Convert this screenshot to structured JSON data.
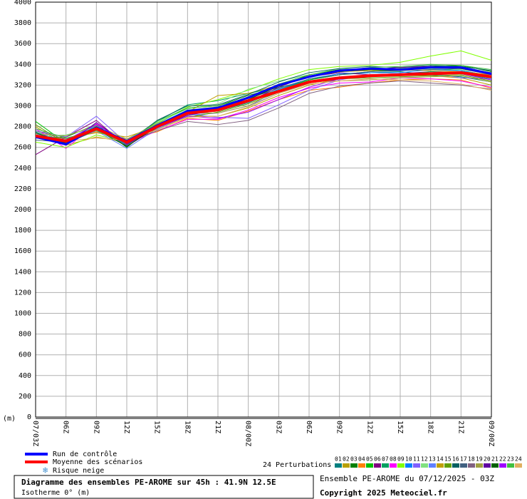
{
  "chart_data": {
    "type": "line",
    "title": "Diagramme des ensembles PE-AROME sur 45h : 41.9N 12.5E",
    "subtitle": "Isotherme 0° (m)",
    "ylabel": "(m)",
    "info": "Ensemble PE-AROME du 07/12/2025 - 03Z",
    "copyright": "Copyright 2025 Meteociel.fr",
    "perturbations_label": "24 Perturbations",
    "snow_legend": "Risque neige",
    "categories": [
      "07/03Z",
      "06Z",
      "09Z",
      "12Z",
      "15Z",
      "18Z",
      "21Z",
      "08/00Z",
      "03Z",
      "06Z",
      "09Z",
      "12Z",
      "15Z",
      "18Z",
      "21Z",
      "09/00Z"
    ],
    "ylim": [
      0,
      4000
    ],
    "yticks": [
      0,
      200,
      400,
      600,
      800,
      1000,
      1200,
      1400,
      1600,
      1800,
      2000,
      2200,
      2400,
      2600,
      2800,
      3000,
      3200,
      3400,
      3600,
      3800,
      4000
    ],
    "grid": true,
    "series": [
      {
        "name": "Run de contrôle",
        "color": "#0000ff",
        "values": [
          2700,
          2630,
          2790,
          2660,
          2810,
          2950,
          2980,
          3080,
          3200,
          3280,
          3340,
          3360,
          3350,
          3370,
          3370,
          3310
        ]
      },
      {
        "name": "Moyenne des scénarios",
        "color": "#ff0000",
        "values": [
          2710,
          2660,
          2780,
          2650,
          2800,
          2930,
          2960,
          3050,
          3140,
          3230,
          3270,
          3290,
          3300,
          3310,
          3320,
          3280
        ]
      },
      {
        "name": "01",
        "color": "#008080",
        "values": [
          2750,
          2650,
          2800,
          2640,
          2790,
          2920,
          2950,
          3030,
          3150,
          3250,
          3300,
          3320,
          3330,
          3300,
          3280,
          3230
        ]
      },
      {
        "name": "02",
        "color": "#b8a000",
        "values": [
          2800,
          2620,
          2700,
          2650,
          2780,
          2900,
          2900,
          2980,
          3100,
          3200,
          3260,
          3280,
          3300,
          3290,
          3270,
          3200
        ]
      },
      {
        "name": "03",
        "color": "#008000",
        "values": [
          2690,
          2700,
          2820,
          2600,
          2830,
          2980,
          3000,
          3100,
          3180,
          3300,
          3350,
          3340,
          3360,
          3380,
          3390,
          3330
        ]
      },
      {
        "name": "04",
        "color": "#ff8000",
        "values": [
          2720,
          2680,
          2750,
          2680,
          2750,
          2880,
          2860,
          2950,
          3060,
          3150,
          3180,
          3220,
          3250,
          3260,
          3250,
          3170
        ]
      },
      {
        "name": "05",
        "color": "#00c000",
        "values": [
          2850,
          2640,
          2830,
          2620,
          2820,
          2950,
          2980,
          3050,
          3160,
          3250,
          3300,
          3330,
          3350,
          3360,
          3340,
          3290
        ]
      },
      {
        "name": "06",
        "color": "#800080",
        "values": [
          2530,
          2700,
          2860,
          2610,
          2790,
          2940,
          2990,
          3060,
          3200,
          3280,
          3320,
          3300,
          3310,
          3330,
          3320,
          3270
        ]
      },
      {
        "name": "07",
        "color": "#00a060",
        "values": [
          2700,
          2650,
          2780,
          2660,
          2850,
          3010,
          3050,
          3120,
          3180,
          3230,
          3270,
          3300,
          3300,
          3330,
          3310,
          3260
        ]
      },
      {
        "name": "08",
        "color": "#ff00ff",
        "values": [
          2780,
          2590,
          2830,
          2630,
          2760,
          2870,
          2870,
          2960,
          3080,
          3170,
          3220,
          3230,
          3270,
          3260,
          3240,
          3180
        ]
      },
      {
        "name": "09",
        "color": "#80ff00",
        "values": [
          2650,
          2600,
          2720,
          2650,
          2830,
          2990,
          3060,
          3150,
          3260,
          3350,
          3380,
          3390,
          3420,
          3480,
          3530,
          3440
        ]
      },
      {
        "name": "10",
        "color": "#0080ff",
        "values": [
          2730,
          2670,
          2810,
          2620,
          2820,
          2960,
          2970,
          3040,
          3160,
          3260,
          3310,
          3320,
          3320,
          3350,
          3340,
          3290
        ]
      },
      {
        "name": "11",
        "color": "#8060ff",
        "values": [
          2760,
          2700,
          2900,
          2640,
          2800,
          2920,
          2890,
          2880,
          3010,
          3150,
          3250,
          3300,
          3290,
          3310,
          3270,
          3260
        ]
      },
      {
        "name": "12",
        "color": "#80e080",
        "values": [
          2700,
          2720,
          2790,
          2670,
          2840,
          2970,
          3020,
          3160,
          3240,
          3300,
          3360,
          3350,
          3370,
          3360,
          3350,
          3310
        ]
      },
      {
        "name": "13",
        "color": "#6080ff",
        "values": [
          2740,
          2640,
          2760,
          2590,
          2780,
          2910,
          2930,
          3000,
          3120,
          3220,
          3270,
          3290,
          3310,
          3320,
          3330,
          3280
        ]
      },
      {
        "name": "14",
        "color": "#c0a000",
        "values": [
          2690,
          2690,
          2740,
          2700,
          2800,
          2940,
          3100,
          3120,
          3200,
          3280,
          3330,
          3340,
          3350,
          3340,
          3330,
          3300
        ]
      },
      {
        "name": "15",
        "color": "#60a000",
        "values": [
          2820,
          2630,
          2770,
          2660,
          2770,
          2890,
          2940,
          3020,
          3130,
          3220,
          3260,
          3270,
          3280,
          3290,
          3300,
          3240
        ]
      },
      {
        "name": "16",
        "color": "#006060",
        "values": [
          2710,
          2660,
          2800,
          2640,
          2860,
          3000,
          3010,
          3110,
          3230,
          3320,
          3360,
          3380,
          3370,
          3390,
          3380,
          3340
        ]
      },
      {
        "name": "17",
        "color": "#406080",
        "values": [
          2670,
          2650,
          2780,
          2620,
          2810,
          2960,
          2990,
          3070,
          3170,
          3260,
          3300,
          3330,
          3340,
          3350,
          3360,
          3320
        ]
      },
      {
        "name": "18",
        "color": "#806080",
        "values": [
          2760,
          2680,
          2790,
          2650,
          2760,
          2850,
          2820,
          2860,
          2980,
          3120,
          3190,
          3220,
          3240,
          3220,
          3200,
          3160
        ]
      },
      {
        "name": "19",
        "color": "#a0a040",
        "values": [
          2730,
          2710,
          2810,
          2680,
          2830,
          2930,
          2930,
          3000,
          3150,
          3240,
          3240,
          3250,
          3270,
          3280,
          3290,
          3230
        ]
      },
      {
        "name": "20",
        "color": "#6000a0",
        "values": [
          2700,
          2620,
          2840,
          2630,
          2790,
          2910,
          2960,
          3040,
          3180,
          3290,
          3330,
          3350,
          3370,
          3380,
          3360,
          3300
        ]
      },
      {
        "name": "21",
        "color": "#006000",
        "values": [
          2740,
          2640,
          2770,
          2610,
          2800,
          2950,
          2970,
          3060,
          3190,
          3280,
          3330,
          3350,
          3340,
          3370,
          3360,
          3310
        ]
      },
      {
        "name": "22",
        "color": "#a000ff",
        "values": [
          2690,
          2670,
          2820,
          2650,
          2790,
          2900,
          2880,
          2940,
          3060,
          3180,
          3260,
          3300,
          3310,
          3300,
          3310,
          3250
        ]
      },
      {
        "name": "23",
        "color": "#40c040",
        "values": [
          2780,
          2690,
          2760,
          2640,
          2850,
          2980,
          3000,
          3080,
          3210,
          3300,
          3340,
          3370,
          3380,
          3400,
          3390,
          3350
        ]
      },
      {
        "name": "24",
        "color": "#e0b060",
        "values": [
          2720,
          2660,
          2690,
          2670,
          2770,
          2890,
          2900,
          2990,
          3120,
          3210,
          3240,
          3260,
          3250,
          3240,
          3210,
          3150
        ]
      }
    ]
  }
}
